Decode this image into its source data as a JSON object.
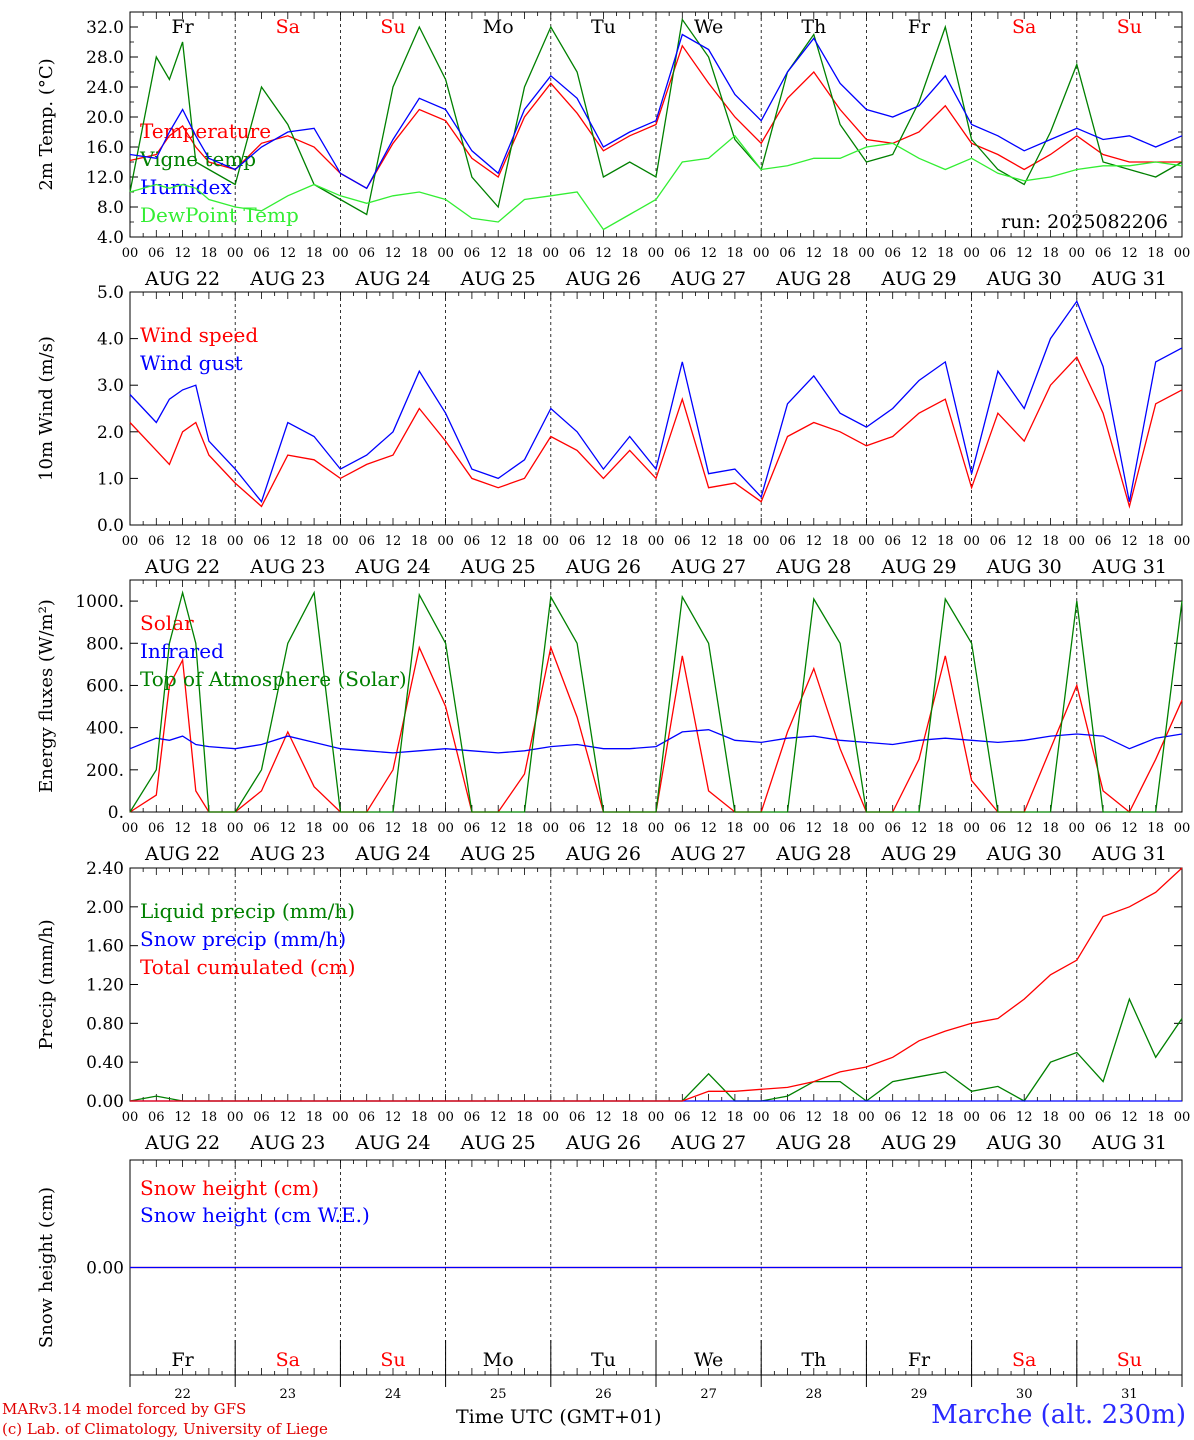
{
  "run_label": "run: 2025082206",
  "day_names": [
    "Fr",
    "Sa",
    "Su",
    "Mo",
    "Tu",
    "We",
    "Th",
    "Fr",
    "Sa",
    "Su"
  ],
  "weekend_flags": [
    false,
    true,
    true,
    false,
    false,
    false,
    false,
    false,
    true,
    true
  ],
  "date_labels": [
    "AUG 22",
    "AUG 23",
    "AUG 24",
    "AUG 25",
    "AUG 26",
    "AUG 27",
    "AUG 28",
    "AUG 29",
    "AUG 30",
    "AUG 31"
  ],
  "day_numbers": [
    "22",
    "23",
    "24",
    "25",
    "26",
    "27",
    "28",
    "29",
    "30",
    "31"
  ],
  "hour_ticks": [
    "00",
    "06",
    "12",
    "18"
  ],
  "hour_end": "00",
  "xlabel": "Time UTC (GMT+01)",
  "station": "Marche (alt. 230m)",
  "credits": [
    "MARv3.14 model forced by GFS",
    "(c) Lab. of Climatology, University of Liege"
  ],
  "colors": {
    "red": "#ff0000",
    "green": "#008000",
    "blue": "#0000ff",
    "lightgreen": "#33ee33"
  },
  "chart_data": [
    {
      "type": "line",
      "ylabel": "2m Temp. (°C)",
      "ylim": [
        4,
        34
      ],
      "yticks": [
        4,
        8,
        12,
        16,
        20,
        24,
        28,
        32
      ],
      "ytick_labels": [
        "4.0",
        "8.0",
        "12.0",
        "16.0",
        "20.0",
        "24.0",
        "28.0",
        "32.0"
      ],
      "x_hours": [
        0,
        6,
        9,
        12,
        15,
        18,
        24,
        30,
        36,
        42,
        48,
        54,
        60,
        66,
        72,
        78,
        84,
        90,
        96,
        102,
        108,
        114,
        120,
        126,
        132,
        138,
        144,
        150,
        156,
        162,
        168,
        174,
        180,
        186,
        192,
        198,
        204,
        210,
        216,
        222,
        228,
        234,
        240
      ],
      "series": [
        {
          "name": "Temperature",
          "color": "red",
          "values": [
            14.2,
            15.0,
            17.5,
            18.8,
            16.0,
            14.0,
            13.0,
            16.5,
            17.5,
            16.0,
            12.5,
            10.5,
            16.5,
            21.0,
            19.5,
            14.5,
            12.0,
            20.0,
            24.5,
            20.5,
            15.5,
            17.5,
            19.0,
            29.5,
            24.5,
            20.0,
            16.5,
            22.5,
            26.0,
            21.0,
            17.0,
            16.5,
            18.0,
            21.5,
            16.5,
            15.0,
            13.0,
            15.0,
            17.5,
            15.0,
            14.0,
            14.0,
            14.0
          ]
        },
        {
          "name": "Vigne temp",
          "color": "green",
          "values": [
            10.0,
            28.0,
            25.0,
            30.0,
            14.0,
            13.0,
            11.0,
            24.0,
            19.0,
            11.0,
            9.0,
            7.0,
            24.0,
            32.0,
            25.0,
            12.0,
            8.0,
            24.0,
            32.0,
            26.0,
            12.0,
            14.0,
            12.0,
            33.0,
            28.0,
            17.0,
            13.0,
            26.0,
            31.0,
            19.0,
            14.0,
            15.0,
            22.0,
            32.0,
            17.0,
            13.0,
            11.0,
            18.0,
            27.0,
            14.0,
            13.0,
            12.0,
            14.0
          ]
        },
        {
          "name": "Humidex",
          "color": "blue",
          "values": [
            15.0,
            14.5,
            18.0,
            21.0,
            17.5,
            14.5,
            13.0,
            16.0,
            18.0,
            18.5,
            12.5,
            10.5,
            17.0,
            22.5,
            21.0,
            15.5,
            12.5,
            21.0,
            25.5,
            22.5,
            16.0,
            18.0,
            19.5,
            31.0,
            29.0,
            23.0,
            19.5,
            26.0,
            30.5,
            24.5,
            21.0,
            20.0,
            21.5,
            25.5,
            19.0,
            17.5,
            15.5,
            17.0,
            18.5,
            17.0,
            17.5,
            16.0,
            17.5
          ]
        },
        {
          "name": "DewPoint Temp",
          "color": "lightgreen",
          "values": [
            10.0,
            11.0,
            10.5,
            11.0,
            10.5,
            9.0,
            8.0,
            7.5,
            9.5,
            11.0,
            9.5,
            8.5,
            9.5,
            10.0,
            9.0,
            6.5,
            6.0,
            9.0,
            9.5,
            10.0,
            5.0,
            7.0,
            9.0,
            14.0,
            14.5,
            17.5,
            13.0,
            13.5,
            14.5,
            14.5,
            16.0,
            16.5,
            14.5,
            13.0,
            14.5,
            12.5,
            11.5,
            12.0,
            13.0,
            13.5,
            13.5,
            14.0,
            13.5
          ]
        }
      ]
    },
    {
      "type": "line",
      "ylabel": "10m Wind (m/s)",
      "ylim": [
        0,
        5
      ],
      "yticks": [
        0,
        1,
        2,
        3,
        4,
        5
      ],
      "ytick_labels": [
        "0.0",
        "1.0",
        "2.0",
        "3.0",
        "4.0",
        "5.0"
      ],
      "x_hours": [
        0,
        6,
        9,
        12,
        15,
        18,
        24,
        30,
        36,
        42,
        48,
        54,
        60,
        66,
        72,
        78,
        84,
        90,
        96,
        102,
        108,
        114,
        120,
        126,
        132,
        138,
        144,
        150,
        156,
        162,
        168,
        174,
        180,
        186,
        192,
        198,
        204,
        210,
        216,
        222,
        228,
        234,
        240
      ],
      "series": [
        {
          "name": "Wind speed",
          "color": "red",
          "values": [
            2.2,
            1.6,
            1.3,
            2.0,
            2.2,
            1.5,
            0.9,
            0.4,
            1.5,
            1.4,
            1.0,
            1.3,
            1.5,
            2.5,
            1.8,
            1.0,
            0.8,
            1.0,
            1.9,
            1.6,
            1.0,
            1.6,
            1.0,
            2.7,
            0.8,
            0.9,
            0.5,
            1.9,
            2.2,
            2.0,
            1.7,
            1.9,
            2.4,
            2.7,
            0.8,
            2.4,
            1.8,
            3.0,
            3.6,
            2.4,
            0.4,
            2.6,
            2.9
          ]
        },
        {
          "name": "Wind gust",
          "color": "blue",
          "values": [
            2.8,
            2.2,
            2.7,
            2.9,
            3.0,
            1.8,
            1.2,
            0.5,
            2.2,
            1.9,
            1.2,
            1.5,
            2.0,
            3.3,
            2.4,
            1.2,
            1.0,
            1.4,
            2.5,
            2.0,
            1.2,
            1.9,
            1.2,
            3.5,
            1.1,
            1.2,
            0.6,
            2.6,
            3.2,
            2.4,
            2.1,
            2.5,
            3.1,
            3.5,
            1.1,
            3.3,
            2.5,
            4.0,
            4.8,
            3.4,
            0.5,
            3.5,
            3.8
          ]
        }
      ]
    },
    {
      "type": "line",
      "ylabel": "Energy fluxes (W/m²)",
      "ylim": [
        0,
        1100
      ],
      "yticks": [
        0,
        200,
        400,
        600,
        800,
        1000
      ],
      "ytick_labels": [
        "0.",
        "200.",
        "400.",
        "600.",
        "800.",
        "1000."
      ],
      "x_hours": [
        0,
        6,
        9,
        12,
        15,
        18,
        24,
        30,
        36,
        42,
        48,
        54,
        60,
        66,
        72,
        78,
        84,
        90,
        96,
        102,
        108,
        114,
        120,
        126,
        132,
        138,
        144,
        150,
        156,
        162,
        168,
        174,
        180,
        186,
        192,
        198,
        204,
        210,
        216,
        222,
        228,
        234,
        240
      ],
      "series": [
        {
          "name": "Solar",
          "color": "red",
          "values": [
            0,
            80,
            600,
            720,
            100,
            0,
            0,
            100,
            380,
            120,
            0,
            0,
            200,
            780,
            500,
            0,
            0,
            180,
            780,
            450,
            0,
            0,
            0,
            740,
            100,
            0,
            0,
            380,
            680,
            300,
            0,
            0,
            250,
            740,
            150,
            0,
            0,
            300,
            600,
            100,
            0,
            250,
            530
          ]
        },
        {
          "name": "Infrared",
          "color": "blue",
          "values": [
            300,
            350,
            340,
            360,
            320,
            310,
            300,
            320,
            360,
            330,
            300,
            290,
            280,
            290,
            300,
            290,
            280,
            290,
            310,
            320,
            300,
            300,
            310,
            380,
            390,
            340,
            330,
            350,
            360,
            340,
            330,
            320,
            340,
            350,
            340,
            330,
            340,
            360,
            370,
            360,
            300,
            350,
            370
          ]
        },
        {
          "name": "Top of Atmosphere (Solar)",
          "color": "green",
          "values": [
            0,
            200,
            800,
            1040,
            800,
            0,
            0,
            200,
            800,
            1040,
            0,
            0,
            0,
            1030,
            800,
            0,
            0,
            0,
            1020,
            800,
            0,
            0,
            0,
            1020,
            800,
            0,
            0,
            0,
            1010,
            800,
            0,
            0,
            0,
            1010,
            800,
            0,
            0,
            0,
            1000,
            0,
            0,
            0,
            1000
          ]
        }
      ]
    },
    {
      "type": "line",
      "ylabel": "Precip (mm/h)",
      "ylim": [
        0,
        2.4
      ],
      "yticks": [
        0,
        0.4,
        0.8,
        1.2,
        1.6,
        2.0,
        2.4
      ],
      "ytick_labels": [
        "0.00",
        "0.40",
        "0.80",
        "1.20",
        "1.60",
        "2.00",
        "2.40"
      ],
      "x_hours": [
        0,
        6,
        12,
        18,
        24,
        30,
        36,
        42,
        48,
        54,
        60,
        66,
        72,
        78,
        84,
        90,
        96,
        102,
        108,
        114,
        120,
        126,
        132,
        138,
        144,
        150,
        156,
        162,
        168,
        174,
        180,
        186,
        192,
        198,
        204,
        210,
        216,
        222,
        228,
        234,
        240
      ],
      "series": [
        {
          "name": "Liquid precip (mm/h)",
          "color": "green",
          "values": [
            0,
            0.05,
            0,
            0,
            0,
            0,
            0,
            0,
            0,
            0,
            0,
            0,
            0,
            0,
            0,
            0,
            0,
            0,
            0,
            0,
            0,
            0,
            0.28,
            0,
            0,
            0.05,
            0.2,
            0.2,
            0,
            0.2,
            0.25,
            0.3,
            0.1,
            0.15,
            0,
            0.4,
            0.5,
            0.2,
            1.05,
            0.45,
            0.85
          ]
        },
        {
          "name": "Snow precip (mm/h)",
          "color": "blue",
          "values": [
            0,
            0,
            0,
            0,
            0,
            0,
            0,
            0,
            0,
            0,
            0,
            0,
            0,
            0,
            0,
            0,
            0,
            0,
            0,
            0,
            0,
            0,
            0,
            0,
            0,
            0,
            0,
            0,
            0,
            0,
            0,
            0,
            0,
            0,
            0,
            0,
            0,
            0,
            0,
            0,
            0
          ]
        },
        {
          "name": "Total cumulated (cm)",
          "color": "red",
          "values": [
            0,
            0,
            0,
            0,
            0,
            0,
            0,
            0,
            0,
            0,
            0,
            0,
            0,
            0,
            0,
            0,
            0,
            0,
            0,
            0,
            0,
            0,
            0.1,
            0.1,
            0.12,
            0.14,
            0.2,
            0.3,
            0.35,
            0.45,
            0.62,
            0.72,
            0.8,
            0.85,
            1.05,
            1.3,
            1.45,
            1.9,
            2.0,
            2.15,
            2.4
          ]
        }
      ]
    },
    {
      "type": "line",
      "ylabel": "Snow height (cm)",
      "ylim": [
        -1,
        1
      ],
      "yticks": [
        0
      ],
      "ytick_labels": [
        "0.00"
      ],
      "x_hours": [
        0,
        240
      ],
      "series": [
        {
          "name": "Snow height (cm)",
          "color": "red",
          "values": [
            0,
            0
          ]
        },
        {
          "name": "Snow height (cm W.E.)",
          "color": "blue",
          "values": [
            0,
            0
          ]
        }
      ]
    }
  ]
}
